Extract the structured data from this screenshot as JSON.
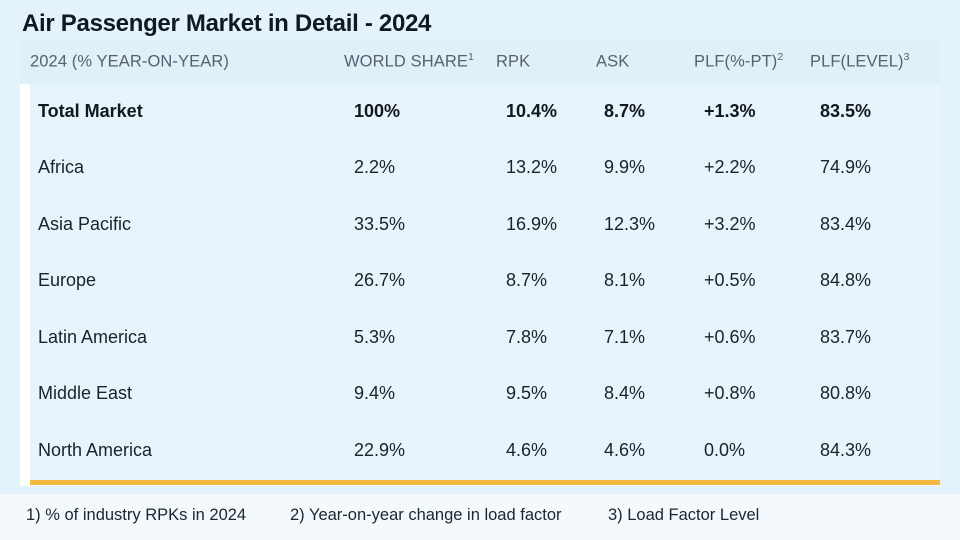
{
  "title": "Air Passenger Market in Detail - 2024",
  "headers": [
    {
      "label": "2024 (% YEAR-ON-YEAR)",
      "sup": ""
    },
    {
      "label": "WORLD SHARE",
      "sup": "1"
    },
    {
      "label": "RPK",
      "sup": ""
    },
    {
      "label": "ASK",
      "sup": ""
    },
    {
      "label": "PLF(%-PT)",
      "sup": "2"
    },
    {
      "label": "PLF(LEVEL)",
      "sup": "3"
    }
  ],
  "rows": [
    {
      "region": "Total Market",
      "world_share": "100%",
      "rpk": "10.4%",
      "ask": "8.7%",
      "plf_pt": "+1.3%",
      "plf_level": "83.5%"
    },
    {
      "region": "Africa",
      "world_share": "2.2%",
      "rpk": "13.2%",
      "ask": "9.9%",
      "plf_pt": "+2.2%",
      "plf_level": "74.9%"
    },
    {
      "region": "Asia Pacific",
      "world_share": "33.5%",
      "rpk": "16.9%",
      "ask": "12.3%",
      "plf_pt": "+3.2%",
      "plf_level": "83.4%"
    },
    {
      "region": "Europe",
      "world_share": "26.7%",
      "rpk": "8.7%",
      "ask": "8.1%",
      "plf_pt": "+0.5%",
      "plf_level": "84.8%"
    },
    {
      "region": "Latin America",
      "world_share": "5.3%",
      "rpk": "7.8%",
      "ask": "7.1%",
      "plf_pt": "+0.6%",
      "plf_level": "83.7%"
    },
    {
      "region": "Middle East",
      "world_share": "9.4%",
      "rpk": "9.5%",
      "ask": "8.4%",
      "plf_pt": "+0.8%",
      "plf_level": "80.8%"
    },
    {
      "region": "North America",
      "world_share": "22.9%",
      "rpk": "4.6%",
      "ask": "4.6%",
      "plf_pt": "0.0%",
      "plf_level": "84.3%"
    }
  ],
  "footnotes": [
    "1) % of industry RPKs in 2024",
    "2) Year-on-year change in load factor",
    "3) Load Factor Level"
  ],
  "colors": {
    "background": "#e3f2fb",
    "header_band": "#e0f0f9",
    "row_band": "#e8f4fb",
    "accent": "#f5b942"
  }
}
